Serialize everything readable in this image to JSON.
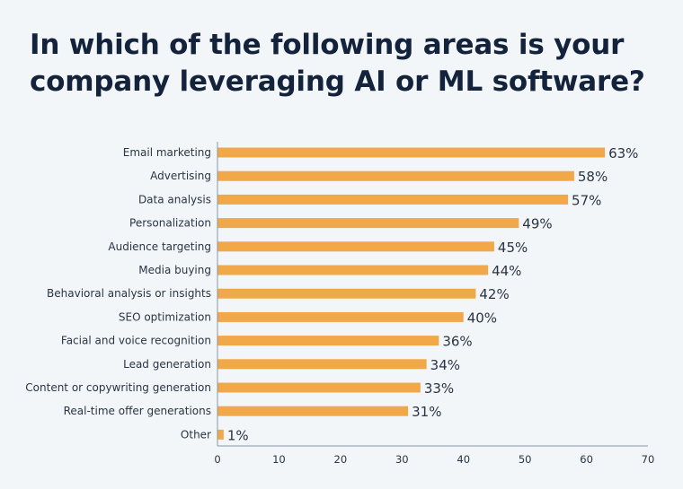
{
  "chart_data": {
    "type": "bar",
    "orientation": "horizontal",
    "title": "In which of the following areas is your company leveraging AI or ML software?",
    "categories": [
      "Email marketing",
      "Advertising",
      "Data analysis",
      "Personalization",
      "Audience targeting",
      "Media buying",
      "Behavioral analysis or insights",
      "SEO optimization",
      "Facial and voice recognition",
      "Lead generation",
      "Content or copywriting generation",
      "Real-time offer generations",
      "Other"
    ],
    "values": [
      63,
      58,
      57,
      49,
      45,
      44,
      42,
      40,
      36,
      34,
      33,
      31,
      1
    ],
    "data_labels": [
      "63%",
      "58%",
      "57%",
      "49%",
      "45%",
      "44%",
      "42%",
      "40%",
      "36%",
      "34%",
      "33%",
      "31%",
      "1%"
    ],
    "xlim": [
      0,
      70
    ],
    "xticks": [
      "0",
      "10",
      "20",
      "30",
      "40",
      "50",
      "60",
      "70"
    ],
    "grid": false,
    "bar_color": "#f0a848"
  }
}
